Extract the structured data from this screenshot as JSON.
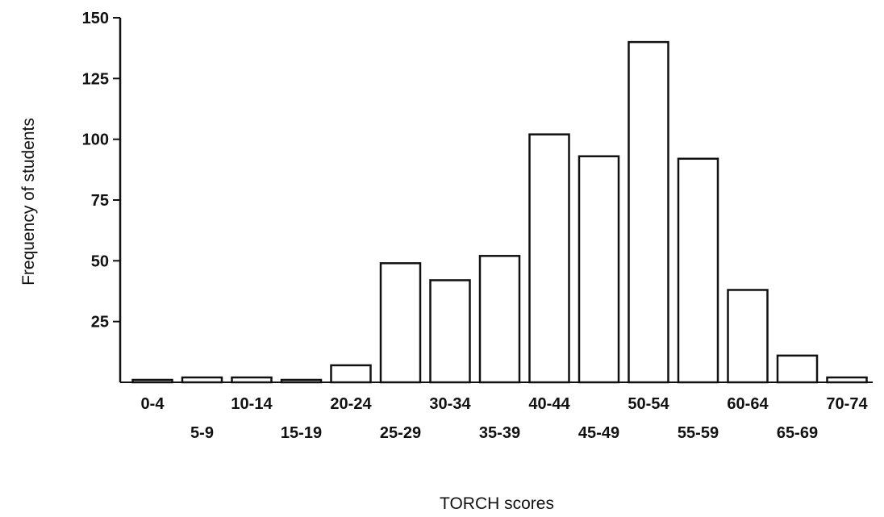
{
  "chart_data": {
    "type": "bar",
    "title": "",
    "xlabel": "TORCH scores",
    "ylabel": "Frequency of students",
    "categories": [
      "0-4",
      "5-9",
      "10-14",
      "15-19",
      "20-24",
      "25-29",
      "30-34",
      "35-39",
      "40-44",
      "45-49",
      "50-54",
      "55-59",
      "60-64",
      "65-69",
      "70-74"
    ],
    "values": [
      1,
      2,
      2,
      1,
      7,
      49,
      42,
      52,
      102,
      93,
      140,
      92,
      38,
      11,
      2
    ],
    "ylim": [
      0,
      150
    ],
    "yticks": [
      25,
      50,
      75,
      100,
      125,
      150
    ],
    "grid": false,
    "legend": "none",
    "colors": {
      "bar_fill": "#ffffff",
      "bar_stroke": "#111111",
      "axis": "#111111"
    }
  }
}
